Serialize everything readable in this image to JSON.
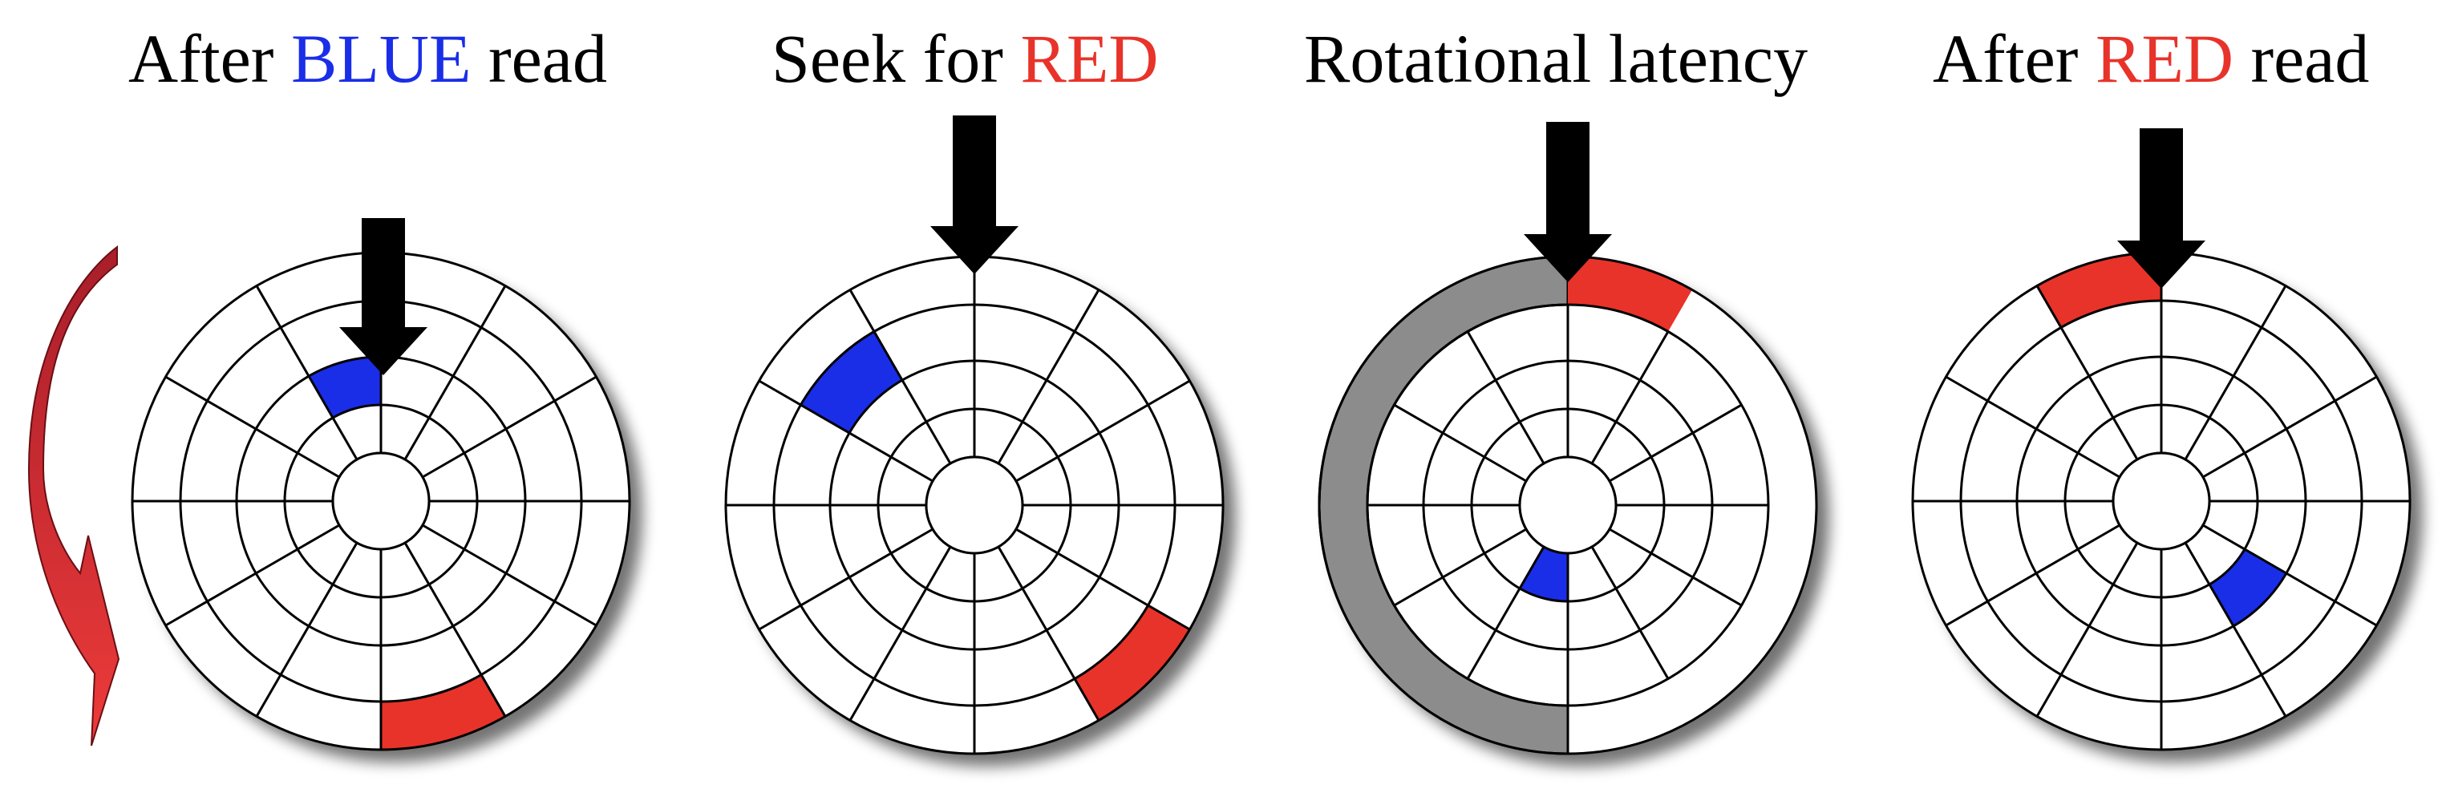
{
  "panels": [
    {
      "title_parts": [
        "After ",
        "BLUE",
        " read"
      ],
      "title_colors": [
        "text",
        "blue",
        "text"
      ]
    },
    {
      "title_parts": [
        "Seek for ",
        "RED"
      ],
      "title_colors": [
        "text",
        "red"
      ]
    },
    {
      "title_parts": [
        "Rotational latency"
      ],
      "title_colors": [
        "text"
      ]
    },
    {
      "title_parts": [
        "After ",
        "RED",
        " read"
      ],
      "title_colors": [
        "text",
        "red",
        "text"
      ]
    }
  ],
  "colors": {
    "text": "#000000",
    "blue": "#1a2ee8",
    "red": "#e8332a",
    "latency_gray": "#8c8c8c",
    "rotation_arrow": "#c8242b"
  },
  "icons": [
    "head-arrow-icon",
    "rotation-arrow-icon"
  ]
}
